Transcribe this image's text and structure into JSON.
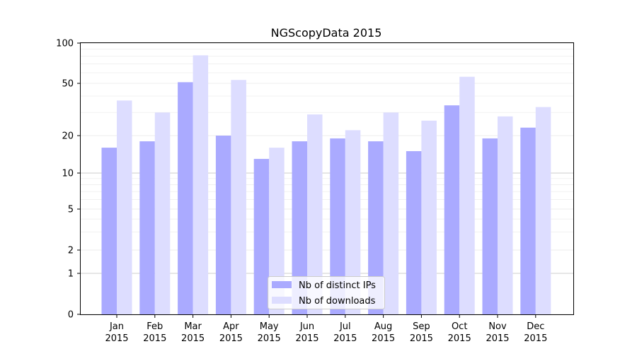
{
  "chart_data": {
    "type": "bar",
    "title": "NGScopyData 2015",
    "xlabel": "",
    "ylabel": "",
    "yscale": "symlog",
    "ylim": [
      0,
      100
    ],
    "yticks": [
      0,
      1,
      2,
      5,
      10,
      20,
      50,
      100
    ],
    "ytick_labels": [
      "0",
      "1",
      "2",
      "5",
      "10",
      "20",
      "50",
      "100"
    ],
    "categories": [
      "Jan\n2015",
      "Feb\n2015",
      "Mar\n2015",
      "Apr\n2015",
      "May\n2015",
      "Jun\n2015",
      "Jul\n2015",
      "Aug\n2015",
      "Sep\n2015",
      "Oct\n2015",
      "Nov\n2015",
      "Dec\n2015"
    ],
    "category_months": [
      "Jan",
      "Feb",
      "Mar",
      "Apr",
      "May",
      "Jun",
      "Jul",
      "Aug",
      "Sep",
      "Oct",
      "Nov",
      "Dec"
    ],
    "category_year": "2015",
    "series": [
      {
        "name": "Nb of distinct IPs",
        "color": "#aaaaff",
        "values": [
          16,
          18,
          51,
          20,
          13,
          18,
          19,
          18,
          15,
          34,
          19,
          23
        ]
      },
      {
        "name": "Nb of downloads",
        "color": "#ddddff",
        "values": [
          37,
          30,
          81,
          53,
          16,
          29,
          22,
          30,
          26,
          56,
          28,
          33
        ]
      }
    ],
    "grid": true,
    "legend_position": "lower-center"
  }
}
